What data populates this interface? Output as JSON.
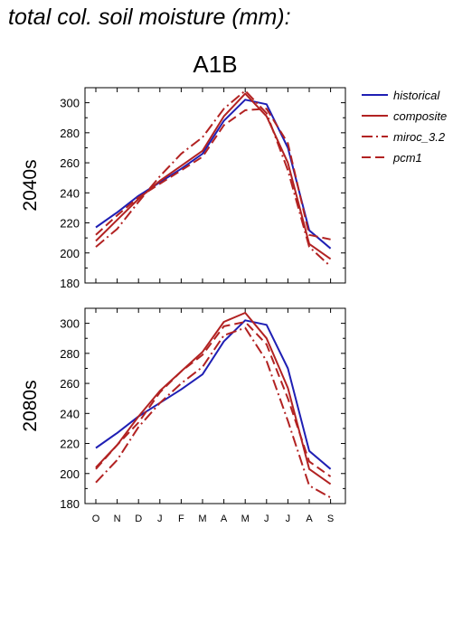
{
  "title": "total col. soil moisture (mm):",
  "chart_data": {
    "type": "line",
    "scenario": "A1B",
    "categories": [
      "O",
      "N",
      "D",
      "J",
      "F",
      "M",
      "A",
      "M",
      "J",
      "J",
      "A",
      "S"
    ],
    "ylim": [
      180,
      310
    ],
    "yticks": [
      180,
      200,
      220,
      240,
      260,
      280,
      300
    ],
    "legend": {
      "placement": "top-right, outside plots",
      "entries": [
        {
          "name": "historical",
          "color": "#1f1fb4",
          "dash": "solid"
        },
        {
          "name": "composite",
          "color": "#b22222",
          "dash": "solid"
        },
        {
          "name": "miroc_3.2",
          "color": "#b22222",
          "dash": "dashdot"
        },
        {
          "name": "pcm1",
          "color": "#b22222",
          "dash": "dash"
        }
      ]
    },
    "panels": [
      {
        "label": "2040s",
        "series": [
          {
            "name": "historical",
            "values": [
              217,
              227,
              238,
              247,
              256,
              266,
              288,
              302,
              299,
              270,
              215,
              203
            ]
          },
          {
            "name": "composite",
            "values": [
              208,
              222,
              236,
              248,
              258,
              268,
              291,
              306,
              291,
              260,
              206,
              196
            ]
          },
          {
            "name": "miroc_3.2",
            "values": [
              204,
              216,
              234,
              251,
              266,
              277,
              296,
              308,
              293,
              255,
              204,
              191
            ]
          },
          {
            "name": "pcm1",
            "values": [
              212,
              225,
              237,
              246,
              255,
              264,
              285,
              295,
              296,
              273,
              212,
              209
            ]
          }
        ]
      },
      {
        "label": "2080s",
        "series": [
          {
            "name": "historical",
            "values": [
              217,
              227,
              238,
              247,
              256,
              266,
              288,
              302,
              299,
              270,
              215,
              203
            ]
          },
          {
            "name": "composite",
            "values": [
              204,
              219,
              238,
              255,
              268,
              281,
              301,
              307,
              290,
              257,
              203,
              193
            ]
          },
          {
            "name": "miroc_3.2",
            "values": [
              194,
              209,
              231,
              247,
              260,
              271,
              292,
              297,
              275,
              235,
              192,
              184
            ]
          },
          {
            "name": "pcm1",
            "values": [
              203,
              219,
              234,
              254,
              268,
              279,
              298,
              301,
              286,
              250,
              208,
              198
            ]
          }
        ]
      }
    ]
  }
}
